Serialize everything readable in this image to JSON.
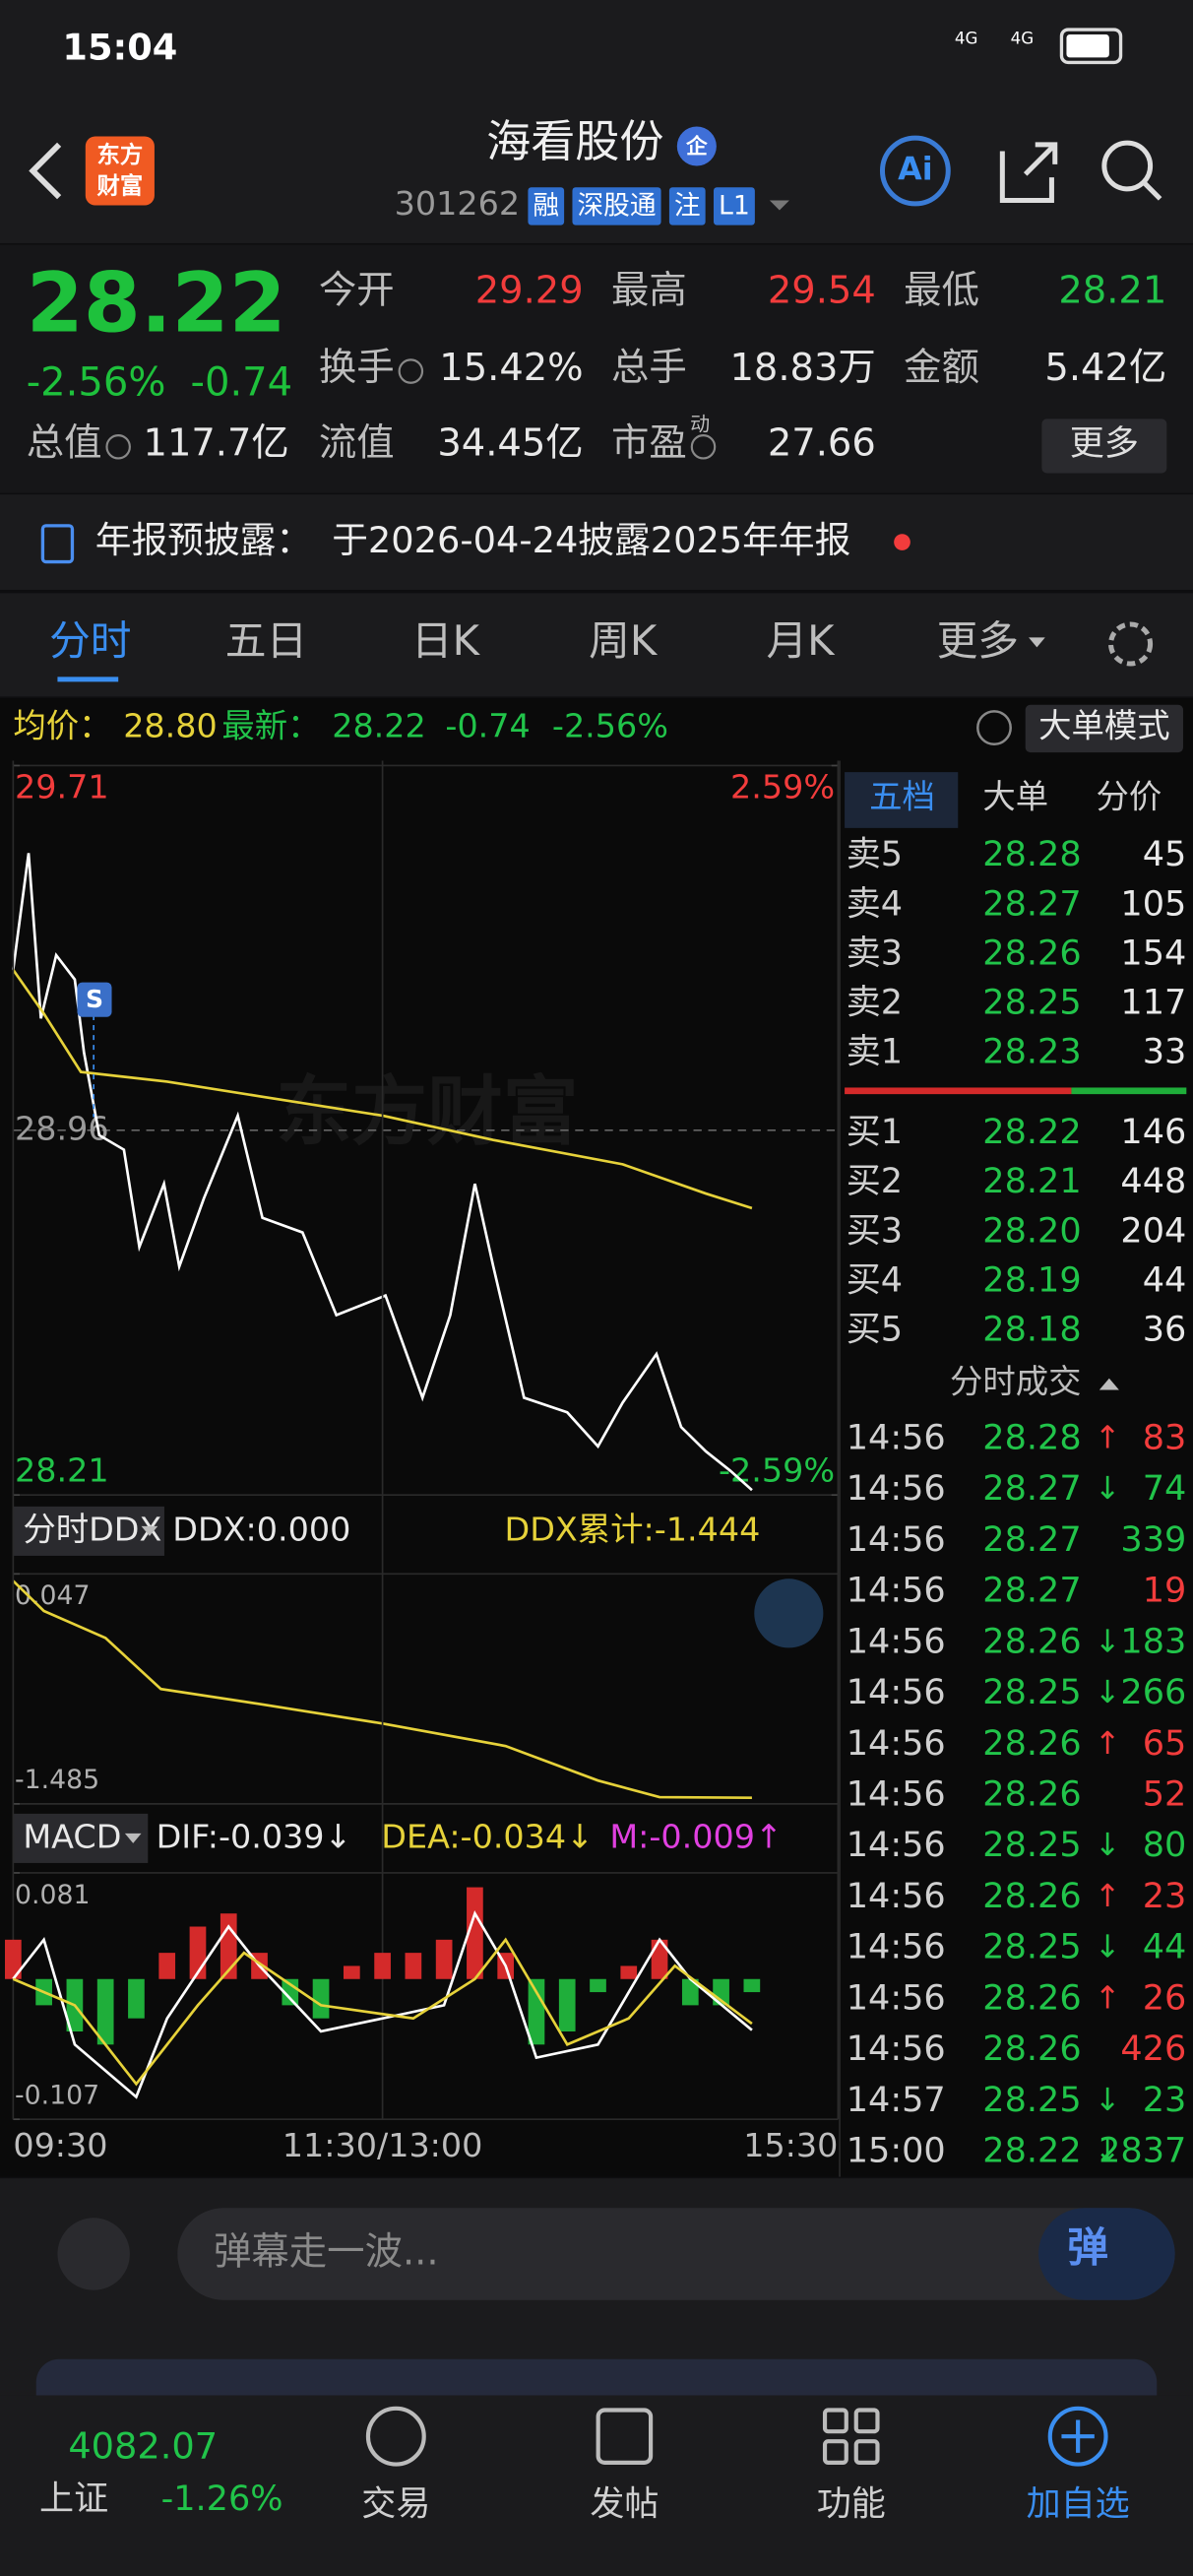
{
  "status_bar": {
    "time": "15:04",
    "network": [
      "4G",
      "4G"
    ]
  },
  "header": {
    "logo": [
      "东方",
      "财富"
    ],
    "title": "海看股份",
    "badge": "企",
    "code": "301262",
    "tags": [
      "融",
      "深股通",
      "注",
      "L1"
    ],
    "ai": "Ai"
  },
  "quote": {
    "price": "28.22",
    "change_pct": "-2.56%",
    "change": "-0.74",
    "more": "更多",
    "fields": [
      {
        "label": "今开",
        "value": "29.29",
        "color": "#f23c3c"
      },
      {
        "label": "最高",
        "value": "29.54",
        "color": "#f23c3c"
      },
      {
        "label": "最低",
        "value": "28.21",
        "color": "#21c44a"
      },
      {
        "label": "换手",
        "value": "15.42%",
        "color": "#e8e8e8"
      },
      {
        "label": "总手",
        "value": "18.83万",
        "color": "#e8e8e8"
      },
      {
        "label": "金额",
        "value": "5.42亿",
        "color": "#e8e8e8"
      },
      {
        "label": "总值",
        "value": "117.7亿",
        "color": "#e8e8e8"
      },
      {
        "label": "流值",
        "value": "34.45亿",
        "color": "#e8e8e8"
      },
      {
        "label": "市盈",
        "sup": "动",
        "value": "27.66",
        "color": "#e8e8e8"
      }
    ]
  },
  "notice": {
    "label": "年报预披露：",
    "text": "于2026-04-24披露2025年年报"
  },
  "tabs": [
    "分时",
    "五日",
    "日K",
    "周K",
    "月K",
    "更多"
  ],
  "chart_info": {
    "avg_label": "均价：",
    "avg": "28.80",
    "latest_label": "最新：",
    "latest": "28.22",
    "change": "-0.74",
    "change_pct": "-2.56%",
    "mode": "大单模式",
    "watermark": "东方财富"
  },
  "chart_data": [
    {
      "type": "line",
      "annotation": "S",
      "xlim": [
        0,
        268
      ],
      "ylim": [
        28.21,
        29.71
      ],
      "yticks": [
        28.21,
        28.96,
        29.71
      ],
      "ytick_colors": [
        "#21c44a",
        "#9a9a9a",
        "#f23c3c"
      ],
      "grid": true,
      "y2lim": [
        -2.59,
        2.59
      ],
      "y2ticks": [
        {
          "value": -2.59,
          "label": "-2.59%"
        },
        {
          "value": 2.59,
          "label": "2.59%"
        }
      ],
      "y2tick_colors": [
        "#21c44a",
        "#f23c3c"
      ],
      "series": [
        {
          "color": "#ffffff",
          "x": [
            0,
            5,
            9,
            14,
            20,
            23,
            28,
            36,
            41,
            49,
            54,
            62,
            73,
            81,
            94,
            105,
            121,
            133,
            142,
            150,
            156,
            166,
            180,
            190,
            198,
            209,
            217,
            225,
            233,
            240
          ],
          "values": [
            29.29,
            29.53,
            29.19,
            29.32,
            29.27,
            29.12,
            28.95,
            28.92,
            28.72,
            28.85,
            28.68,
            28.82,
            28.99,
            28.78,
            28.75,
            28.58,
            28.62,
            28.41,
            28.58,
            28.85,
            28.68,
            28.41,
            28.38,
            28.31,
            28.4,
            28.5,
            28.35,
            28.3,
            28.26,
            28.22
          ]
        },
        {
          "color": "#e6d23a",
          "x": [
            0,
            10,
            22,
            50,
            80,
            120,
            156,
            198,
            225,
            240
          ],
          "values": [
            29.29,
            29.2,
            29.08,
            29.06,
            29.03,
            28.99,
            28.94,
            28.89,
            28.83,
            28.8
          ]
        }
      ]
    },
    {
      "type": "line",
      "header": [
        "分时DDX",
        "DDX:0.000",
        "DDX累计:-1.444"
      ],
      "header_colors": [
        "#e8e8e8",
        "#e8e8e8",
        "#e6d23a"
      ],
      "xlim": [
        0,
        268
      ],
      "ylim": [
        -1.485,
        0.047
      ],
      "yticks": [
        -1.485,
        0.047
      ],
      "ytick_colors": [
        "#b0b0b0",
        "#b0b0b0"
      ],
      "grid": false,
      "series": [
        {
          "color": "#e6d23a",
          "x": [
            0,
            10,
            30,
            48,
            80,
            120,
            160,
            190,
            210,
            240
          ],
          "values": [
            0.0,
            -0.2,
            -0.38,
            -0.72,
            -0.82,
            -0.95,
            -1.1,
            -1.33,
            -1.44,
            -1.444
          ]
        }
      ]
    },
    {
      "type": "combo",
      "header": [
        "MACD",
        "DIF:-0.039↓",
        "DEA:-0.034↓",
        "M:-0.009↑"
      ],
      "header_colors": [
        "#e8e8e8",
        "#e8e8e8",
        "#e6d23a",
        "#e040e0"
      ],
      "xlim": [
        0,
        268
      ],
      "ylim": [
        -0.107,
        0.081
      ],
      "yticks": [
        -0.107,
        0.081
      ],
      "ytick_colors": [
        "#b0b0b0",
        "#b0b0b0"
      ],
      "grid": false,
      "xticks": [
        {
          "value": 0,
          "label": "09:30"
        },
        {
          "value": 120,
          "label": "11:30/13:00"
        },
        {
          "value": 268,
          "label": "15:30"
        }
      ],
      "series": [
        {
          "type": "bar",
          "up_color": "#d42a2a",
          "down_color": "#1fae3a",
          "x": [
            0,
            10,
            20,
            30,
            40,
            50,
            60,
            70,
            80,
            90,
            100,
            110,
            120,
            130,
            140,
            150,
            160,
            170,
            180,
            190,
            200,
            210,
            220,
            230,
            240
          ],
          "values": [
            0.03,
            -0.02,
            -0.04,
            -0.05,
            -0.03,
            0.02,
            0.04,
            0.05,
            0.02,
            -0.02,
            -0.03,
            0.01,
            0.02,
            0.02,
            0.03,
            0.07,
            0.02,
            -0.05,
            -0.04,
            -0.01,
            0.01,
            0.03,
            -0.02,
            -0.02,
            -0.01
          ]
        },
        {
          "type": "line",
          "color": "#ffffff",
          "x": [
            0,
            10,
            20,
            40,
            50,
            70,
            80,
            100,
            120,
            140,
            150,
            160,
            170,
            190,
            210,
            220,
            240
          ],
          "values": [
            0.0,
            0.03,
            -0.05,
            -0.09,
            -0.03,
            0.04,
            0.01,
            -0.04,
            -0.03,
            -0.02,
            0.05,
            0.01,
            -0.06,
            -0.05,
            0.03,
            0.0,
            -0.039
          ]
        },
        {
          "type": "line",
          "color": "#e6d23a",
          "x": [
            0,
            20,
            40,
            60,
            75,
            100,
            130,
            150,
            160,
            180,
            200,
            215,
            240
          ],
          "values": [
            0.0,
            -0.02,
            -0.08,
            -0.02,
            0.02,
            -0.02,
            -0.03,
            0.0,
            0.03,
            -0.05,
            -0.03,
            0.01,
            -0.034
          ]
        }
      ]
    }
  ],
  "order_book": {
    "tabs": [
      "五档",
      "大单",
      "分价"
    ],
    "asks": [
      {
        "label": "卖5",
        "price": "28.28",
        "volume": "45"
      },
      {
        "label": "卖4",
        "price": "28.27",
        "volume": "105"
      },
      {
        "label": "卖3",
        "price": "28.26",
        "volume": "154"
      },
      {
        "label": "卖2",
        "price": "28.25",
        "volume": "117"
      },
      {
        "label": "卖1",
        "price": "28.23",
        "volume": "33"
      }
    ],
    "bids": [
      {
        "label": "买1",
        "price": "28.22",
        "volume": "146"
      },
      {
        "label": "买2",
        "price": "28.21",
        "volume": "448"
      },
      {
        "label": "买3",
        "price": "28.20",
        "volume": "204"
      },
      {
        "label": "买4",
        "price": "28.19",
        "volume": "44"
      },
      {
        "label": "买5",
        "price": "28.18",
        "volume": "36"
      }
    ]
  },
  "trades": {
    "title": "分时成交",
    "rows": [
      {
        "time": "14:56",
        "price": "28.28",
        "arrow": "↑",
        "volume": "83",
        "color": "#f23c3c"
      },
      {
        "time": "14:56",
        "price": "28.27",
        "arrow": "↓",
        "volume": "74",
        "color": "#21c44a"
      },
      {
        "time": "14:56",
        "price": "28.27",
        "volume": "339",
        "color": "#21c44a"
      },
      {
        "time": "14:56",
        "price": "28.27",
        "volume": "19",
        "color": "#f23c3c"
      },
      {
        "time": "14:56",
        "price": "28.26",
        "arrow": "↓",
        "volume": "183",
        "color": "#21c44a"
      },
      {
        "time": "14:56",
        "price": "28.25",
        "arrow": "↓",
        "volume": "266",
        "color": "#21c44a"
      },
      {
        "time": "14:56",
        "price": "28.26",
        "arrow": "↑",
        "volume": "65",
        "color": "#f23c3c"
      },
      {
        "time": "14:56",
        "price": "28.26",
        "volume": "52",
        "color": "#f23c3c"
      },
      {
        "time": "14:56",
        "price": "28.25",
        "arrow": "↓",
        "volume": "80",
        "color": "#21c44a"
      },
      {
        "time": "14:56",
        "price": "28.26",
        "arrow": "↑",
        "volume": "23",
        "color": "#f23c3c"
      },
      {
        "time": "14:56",
        "price": "28.25",
        "arrow": "↓",
        "volume": "44",
        "color": "#21c44a"
      },
      {
        "time": "14:56",
        "price": "28.26",
        "arrow": "↑",
        "volume": "26",
        "color": "#f23c3c"
      },
      {
        "time": "14:56",
        "price": "28.26",
        "volume": "426",
        "color": "#f23c3c"
      },
      {
        "time": "14:57",
        "price": "28.25",
        "arrow": "↓",
        "volume": "23",
        "color": "#21c44a"
      },
      {
        "time": "15:00",
        "price": "28.22",
        "arrow": "↓",
        "volume": "2837",
        "color": "#21c44a"
      }
    ]
  },
  "comment": {
    "placeholder": "弹幕走一波...",
    "button": "弹"
  },
  "bottom_nav": {
    "index_value": "4082.07",
    "index_name": "上证",
    "index_change": "-1.26%",
    "items": [
      "交易",
      "发帖",
      "功能",
      "加自选"
    ]
  }
}
